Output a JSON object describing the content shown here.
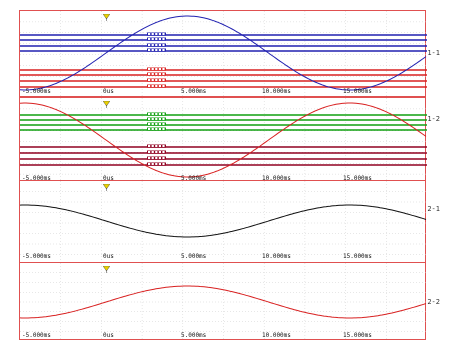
{
  "colors": {
    "border": "#e05050",
    "grid": "#cfcfcf",
    "trigger": "#e8d000",
    "blue": "#2020b0",
    "red": "#d82020",
    "green": "#10a010",
    "dark_red": "#900020",
    "black": "#101010"
  },
  "panels": [
    {
      "id": "1-1",
      "channel_label": "1-1",
      "tick_labels": [
        "-5.000ms",
        "0us",
        "5.000ms",
        "10.000ms",
        "15.000ms"
      ],
      "trigger_icon": "trigger-marker-icon",
      "waveform": {
        "shape": "sine",
        "color": "#2020b0",
        "phase": "peak-near-5ms"
      },
      "logic_rows": [
        {
          "color": "#2020b0",
          "count": 4
        },
        {
          "color": "#d82020",
          "count": 4
        }
      ]
    },
    {
      "id": "1-2",
      "channel_label": "1-2",
      "tick_labels": [
        "-5.000ms",
        "0us",
        "5.000ms",
        "10.000ms",
        "15.000ms"
      ],
      "trigger_icon": "trigger-marker-icon",
      "waveform": {
        "shape": "sine",
        "color": "#d82020",
        "phase": "trough-near-5ms"
      },
      "logic_rows": [
        {
          "color": "#10a010",
          "count": 4
        },
        {
          "color": "#900020",
          "count": 4
        }
      ]
    },
    {
      "id": "2-1",
      "channel_label": "2-1",
      "tick_labels": [
        "-5.000ms",
        "0us",
        "5.000ms",
        "10.000ms",
        "15.000ms"
      ],
      "trigger_icon": "trigger-marker-icon",
      "waveform": {
        "shape": "sine",
        "color": "#101010",
        "phase": "trough-near-5ms"
      },
      "logic_rows": []
    },
    {
      "id": "2-2",
      "channel_label": "2-2",
      "tick_labels": [
        "-5.000ms",
        "0us",
        "5.000ms",
        "10.000ms",
        "15.000ms"
      ],
      "trigger_icon": "trigger-marker-icon",
      "waveform": {
        "shape": "sine",
        "color": "#d82020",
        "phase": "peak-near-5ms"
      },
      "logic_rows": []
    }
  ]
}
